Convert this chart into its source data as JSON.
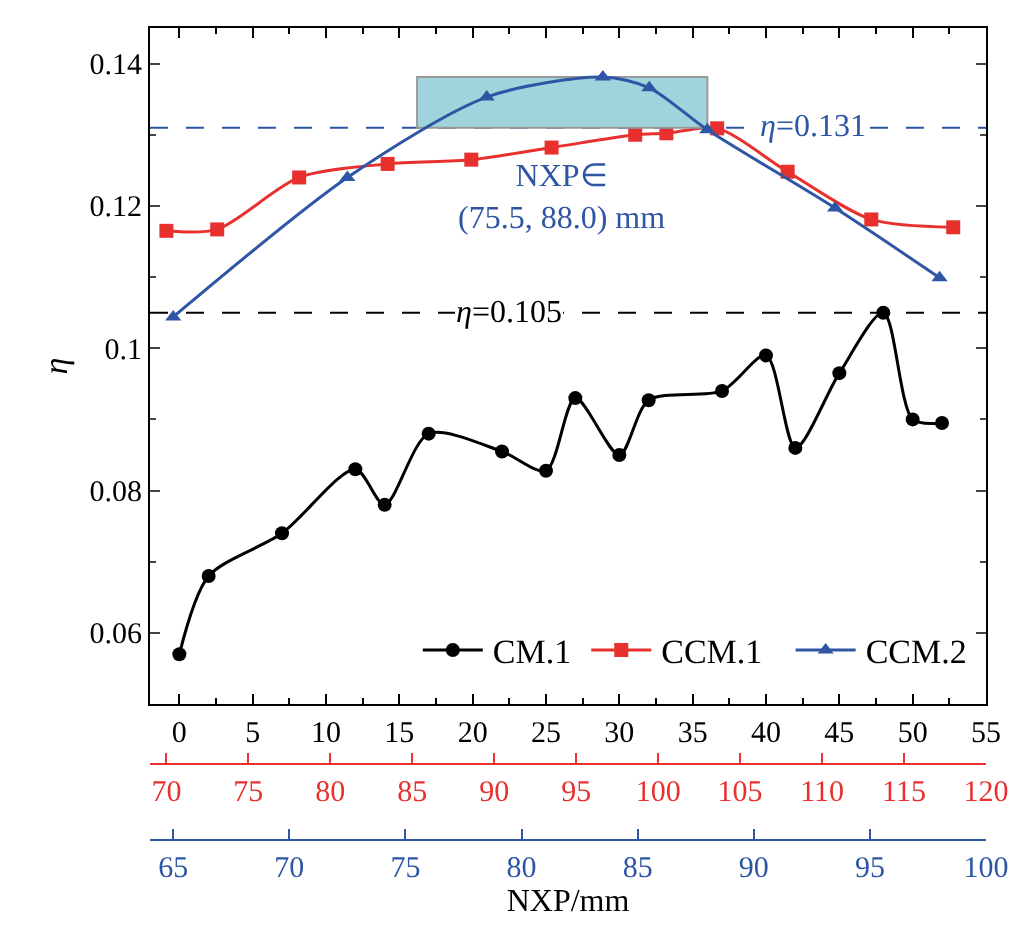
{
  "chart_data": [
    {
      "type": "line",
      "ylabel": "η",
      "xlim": [
        -2,
        55
      ],
      "xticks": [
        0,
        {
          "value": 2.5,
          "label": null
        },
        5,
        {
          "value": 7.5,
          "label": null
        },
        10,
        {
          "value": 12.5,
          "label": null
        },
        15,
        {
          "value": 17.5,
          "label": null
        },
        20,
        {
          "value": 22.5,
          "label": null
        },
        25,
        {
          "value": 27.5,
          "label": null
        },
        30,
        {
          "value": 32.5,
          "label": null
        },
        35,
        {
          "value": 37.5,
          "label": null
        },
        40,
        {
          "value": 42.5,
          "label": null
        },
        45,
        {
          "value": 47.5,
          "label": null
        },
        50,
        {
          "value": 52.5,
          "label": null
        },
        55
      ],
      "x2lim": [
        69,
        120
      ],
      "x2ticks": [
        70,
        75,
        80,
        85,
        90,
        95,
        100,
        105,
        110,
        115,
        120
      ],
      "ylim": [
        0.05,
        0.145
      ],
      "yticks": [
        0.06,
        {
          "value": 0.07,
          "label": null
        },
        0.08,
        {
          "value": 0.09,
          "label": null
        },
        0.1,
        {
          "value": 0.11,
          "label": null
        },
        0.12,
        {
          "value": 0.13,
          "label": null
        },
        0.14
      ],
      "series": [
        {
          "name": "CM.1",
          "color": "#000000",
          "marker": "circle",
          "x": [
            0,
            2,
            7,
            12,
            14,
            17,
            22,
            25,
            27,
            30,
            32,
            37,
            40,
            42,
            45,
            48,
            50,
            52
          ],
          "values": [
            0.057,
            0.068,
            0.074,
            0.083,
            0.078,
            0.088,
            0.0855,
            0.0828,
            0.093,
            0.085,
            0.0927,
            0.094,
            0.099,
            0.086,
            0.0965,
            0.105,
            0.09,
            0.0895
          ]
        },
        {
          "name": "CCM.1",
          "color": "#e8312f",
          "marker": "square",
          "axis": "x2",
          "x": [
            70,
            73.1,
            78.1,
            83.5,
            88.6,
            93.5,
            98.6,
            100.5,
            103.6,
            107.9,
            113,
            118
          ],
          "values": [
            0.1165,
            0.1167,
            0.124,
            0.1259,
            0.1265,
            0.1282,
            0.13,
            0.1302,
            0.1309,
            0.1248,
            0.1181,
            0.117
          ]
        }
      ],
      "ref_lines": [
        {
          "axis": "y",
          "value": 0.105,
          "label": "η=0.105",
          "color": "#000000",
          "line_style": "dashed"
        }
      ],
      "legend": "bottom right"
    },
    {
      "type": "line",
      "xlabel": "NXP/mm",
      "tick_labels": "x",
      "xlim": [
        64,
        100
      ],
      "xticks": [
        65,
        70,
        75,
        80,
        85,
        90,
        95,
        100
      ],
      "ylim": [
        0.05,
        0.145
      ],
      "series": [
        {
          "name": "CCM.2",
          "color": "#2e56a5",
          "marker": "triangle",
          "x": [
            65,
            72.5,
            78.5,
            83.5,
            85.5,
            88,
            93.5,
            98
          ],
          "values": [
            0.1044,
            0.124,
            0.1353,
            0.1381,
            0.1366,
            0.1307,
            0.1197,
            0.1099
          ]
        }
      ],
      "ref_lines": [
        {
          "axis": "y",
          "value": 0.131,
          "label": "η=0.131",
          "color": "#2e56a5",
          "line_style": "dashed"
        }
      ],
      "bands": [
        {
          "axis": "x",
          "from": 75.5,
          "to": 88.0,
          "color": "#9fd4dc"
        }
      ],
      "annotations": [
        "NXP∈\n(75.5, 88.0) mm"
      ],
      "legend": "bottom right"
    }
  ]
}
